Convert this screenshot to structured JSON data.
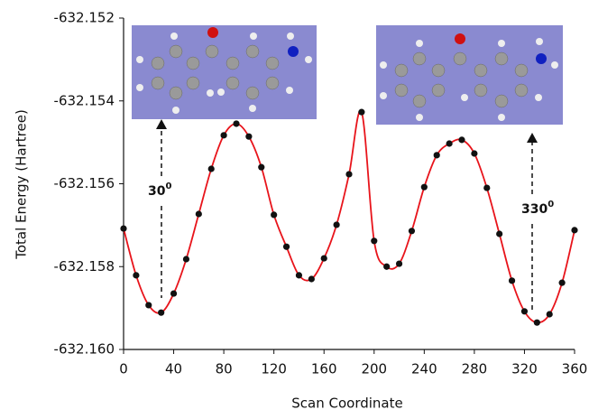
{
  "chart_data": {
    "type": "line",
    "x_label": "Scan Coordinate",
    "y_label": "Total Energy (Hartree)",
    "x": [
      0,
      10,
      20,
      30,
      40,
      50,
      60,
      70,
      80,
      90,
      100,
      110,
      120,
      130,
      140,
      150,
      160,
      170,
      180,
      190,
      200,
      210,
      220,
      230,
      240,
      250,
      260,
      270,
      280,
      290,
      300,
      310,
      320,
      330,
      340,
      350,
      360
    ],
    "values": [
      -632.15708,
      -632.15821,
      -632.15893,
      -632.15911,
      -632.15865,
      -632.15782,
      -632.15673,
      -632.15564,
      -632.15483,
      -632.15455,
      -632.15486,
      -632.1556,
      -632.15675,
      -632.15752,
      -632.15821,
      -632.1583,
      -632.1578,
      -632.15699,
      -632.15577,
      -632.15427,
      -632.15738,
      -632.158,
      -632.15793,
      -632.15714,
      -632.15608,
      -632.15531,
      -632.15503,
      -632.15494,
      -632.15527,
      -632.1561,
      -632.15721,
      -632.15834,
      -632.15908,
      -632.15935,
      -632.15915,
      -632.15839,
      -632.15712
    ],
    "color": "#e8141b",
    "marker_color": "#111111",
    "xlim": [
      0,
      360
    ],
    "xticks": [
      0,
      40,
      80,
      120,
      160,
      200,
      240,
      280,
      320,
      360
    ],
    "ylim": [
      -632.16,
      -632.152
    ],
    "yticks": [
      {
        "value": -632.16,
        "label": "-632.160"
      },
      -632.158,
      -632.156,
      -632.154,
      -632.152
    ],
    "annotations": [
      {
        "text": "30",
        "sup": "0"
      },
      {
        "text": "330",
        "sup": "0"
      }
    ]
  }
}
